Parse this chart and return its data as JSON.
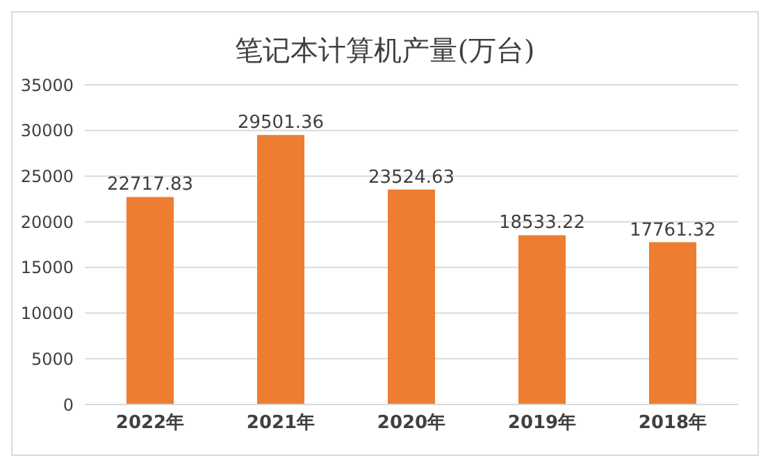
{
  "chart_data": {
    "type": "bar",
    "title": "笔记本计算机产量(万台)",
    "categories": [
      "2022年",
      "2021年",
      "2020年",
      "2019年",
      "2018年"
    ],
    "values": [
      22717.83,
      29501.36,
      23524.63,
      18533.22,
      17761.32
    ],
    "color": "#ed7d31",
    "ylim": [
      0,
      35000
    ],
    "yticks": [
      0,
      5000,
      10000,
      15000,
      20000,
      25000,
      30000,
      35000
    ],
    "grid": "y",
    "data_labels": true
  }
}
